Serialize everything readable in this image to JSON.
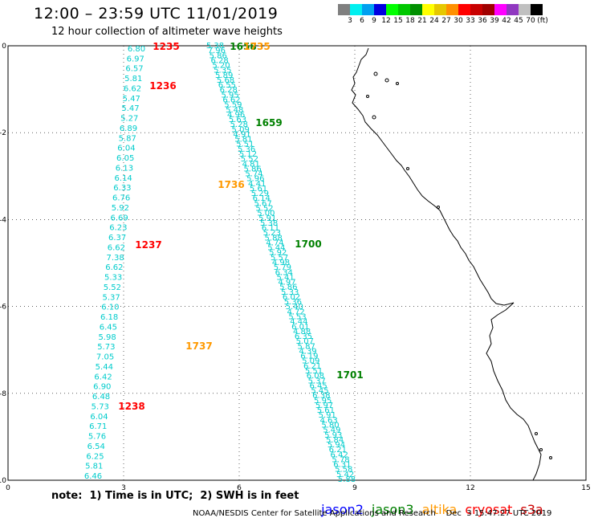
{
  "header": {
    "title": "12:00 – 23:59 UTC 11/01/2019",
    "subtitle": "12 hour collection of altimeter wave heights"
  },
  "legend": {
    "colors": [
      "#7f7f7f",
      "#00f0f0",
      "#00a0f0",
      "#0000e0",
      "#00ff00",
      "#00c800",
      "#009000",
      "#ffff00",
      "#e6c800",
      "#ff9000",
      "#ff0000",
      "#c80000",
      "#a00000",
      "#ff00ff",
      "#9038c0",
      "#c0c0c0",
      "#000000"
    ],
    "labels": [
      "3",
      "6",
      "9",
      "12",
      "15",
      "18",
      "21",
      "24",
      "27",
      "30",
      "33",
      "36",
      "39",
      "42",
      "45",
      "70",
      "(ft)"
    ]
  },
  "axes": {
    "x_ticks": [
      "0",
      "3",
      "6",
      "9",
      "12",
      "15"
    ],
    "y_ticks": [
      "0",
      "-2",
      "-4",
      "-6",
      "-8",
      "-10"
    ],
    "x_range": [
      0,
      15
    ],
    "y_range": [
      -10,
      0
    ]
  },
  "track_values": {
    "track1": [
      "6.80",
      "6.97",
      "6.57",
      "5.81",
      "6.62",
      "5.47",
      "5.47",
      "5.27",
      "6.89",
      "5.87",
      "6.04",
      "6.05",
      "6.13",
      "6.14",
      "6.33",
      "6.76",
      "5.92",
      "6.69",
      "6.23",
      "6.37",
      "6.62",
      "7.38",
      "6.62",
      "5.33",
      "5.52",
      "5.37",
      "6.10",
      "6.18",
      "6.45",
      "5.98",
      "5.73",
      "7.05",
      "5.44",
      "6.42",
      "6.90",
      "6.48",
      "5.73",
      "6.04",
      "6.71",
      "5.76",
      "6.54",
      "6.25",
      "5.81",
      "6.46"
    ],
    "track2": [
      "5.38",
      "7.96",
      "5.86",
      "6.28",
      "5.20",
      "5.35",
      "5.89",
      "5.68",
      "6.55",
      "6.28",
      "5.95",
      "6.62",
      "5.59",
      "5.48",
      "4.96",
      "5.63",
      "5.28",
      "5.09",
      "4.91",
      "5.81",
      "5.51",
      "5.36",
      "5.12",
      "5.52",
      "4.81",
      "5.86",
      "5.74",
      "5.96",
      "4.41",
      "5.61",
      "5.29",
      "6.14",
      "5.67",
      "5.52",
      "5.00",
      "5.91",
      "5.38",
      "6.11",
      "5.23",
      "5.88",
      "4.74",
      "5.44",
      "5.92",
      "5.57",
      "4.98",
      "5.79",
      "6.34",
      "5.41",
      "4.97",
      "5.86",
      "5.33",
      "6.02",
      "5.36",
      "5.40",
      "4.72",
      "5.53",
      "4.44",
      "6.01",
      "4.88",
      "6.35",
      "5.07",
      "5.87",
      "4.39",
      "6.19",
      "5.09",
      "6.21",
      "5.51",
      "6.08",
      "5.37",
      "6.45",
      "5.45",
      "6.38",
      "5.95",
      "5.97",
      "5.61",
      "5.91",
      "4.63",
      "5.80",
      "5.49",
      "5.93",
      "5.84",
      "5.94",
      "6.21",
      "6.42",
      "5.78",
      "6.31",
      "5.58",
      "5.42",
      "5.88"
    ],
    "blue_value": "5.47"
  },
  "time_labels": [
    {
      "text": "1235",
      "sat": "cryosat"
    },
    {
      "text": "1236",
      "sat": "cryosat"
    },
    {
      "text": "1237",
      "sat": "cryosat"
    },
    {
      "text": "1238",
      "sat": "cryosat"
    },
    {
      "text": "1658",
      "sat": "jason3"
    },
    {
      "text": "1735",
      "sat": "altika"
    },
    {
      "text": "1659",
      "sat": "jason3"
    },
    {
      "text": "1736",
      "sat": "altika"
    },
    {
      "text": "1700",
      "sat": "jason3"
    },
    {
      "text": "1737",
      "sat": "altika"
    },
    {
      "text": "1701",
      "sat": "jason3"
    }
  ],
  "sat_colors": {
    "jason2": "#0000ff",
    "jason3": "#008000",
    "altika": "#ff9900",
    "cryosat": "#ff0000",
    "s3a": "#cc0000"
  },
  "note": "note:  1) Time is in UTC;  2) SWH is in feet",
  "sat_legend": {
    "jason2": "jason2",
    "jason3": "jason3",
    "altika": "altika",
    "cryosat": "cryosat",
    "s3a": "s3a"
  },
  "footer": "NOAA/NESDIS Center for Satellite Applications and Research    Dec  3 15:47:27 UTC 2019"
}
